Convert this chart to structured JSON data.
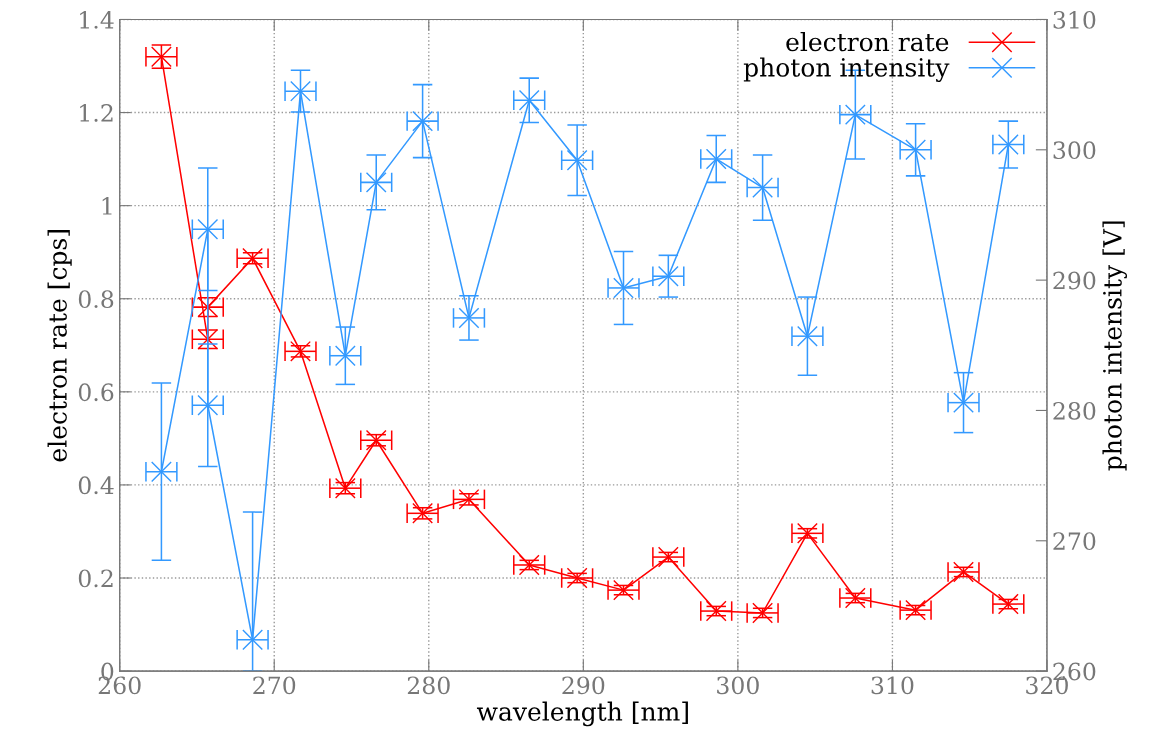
{
  "chart_data": {
    "type": "line",
    "xlabel": "wavelength [nm]",
    "ylabel": "electron rate [cps]",
    "y2label": "photon intensity [V]",
    "xlim": [
      260,
      320
    ],
    "xticks": [
      260,
      270,
      280,
      290,
      300,
      310,
      320
    ],
    "ylim": [
      0,
      1.4
    ],
    "yticks": [
      0,
      0.2,
      0.4,
      0.6,
      0.8,
      1,
      1.2,
      1.4
    ],
    "y2lim": [
      260,
      310
    ],
    "y2ticks": [
      260,
      270,
      280,
      290,
      300,
      310
    ],
    "grid": true,
    "legend": "top right",
    "marker": "cross",
    "line_style": "solid",
    "series": [
      {
        "name": "electron rate",
        "color": "#ff0000",
        "axis": "y",
        "x": [
          262.7,
          265.7,
          265.7,
          268.6,
          271.7,
          274.6,
          276.6,
          279.6,
          282.6,
          286.5,
          289.6,
          292.6,
          295.5,
          298.6,
          301.6,
          304.5,
          307.6,
          311.5,
          314.6,
          317.5
        ],
        "values": [
          1.32,
          0.713,
          0.782,
          0.887,
          0.687,
          0.393,
          0.496,
          0.339,
          0.369,
          0.228,
          0.2,
          0.174,
          0.245,
          0.129,
          0.125,
          0.296,
          0.157,
          0.131,
          0.213,
          0.144
        ],
        "errors": [
          0.025,
          0.02,
          0.02,
          0.012,
          0.012,
          0.012,
          0.012,
          0.012,
          0.012,
          0.01,
          0.01,
          0.01,
          0.01,
          0.01,
          0.01,
          0.01,
          0.01,
          0.01,
          0.01,
          0.01
        ],
        "xerrors": [
          1,
          1,
          1,
          1,
          1,
          1,
          1,
          1,
          1,
          1,
          1,
          1,
          1,
          1,
          1,
          1,
          1,
          1,
          1,
          1
        ]
      },
      {
        "name": "photon intensity",
        "color": "#3399ff",
        "axis": "y2",
        "x": [
          262.7,
          265.7,
          265.7,
          268.6,
          271.7,
          274.6,
          276.6,
          279.6,
          282.6,
          286.5,
          289.6,
          292.6,
          295.5,
          298.6,
          301.6,
          304.5,
          307.6,
          311.5,
          314.6,
          317.5
        ],
        "values": [
          275.3,
          293.9,
          280.4,
          262.4,
          304.5,
          284.2,
          297.5,
          302.2,
          287.1,
          303.8,
          299.2,
          289.4,
          290.3,
          299.3,
          297.1,
          285.7,
          302.7,
          300.0,
          280.6,
          300.4
        ],
        "errors": [
          6.8,
          4.7,
          4.7,
          [
            260,
            272.2
          ],
          1.6,
          2.2,
          2.1,
          2.8,
          1.7,
          1.7,
          2.7,
          2.8,
          1.6,
          1.8,
          2.5,
          3.0,
          3.4,
          2.0,
          2.3,
          1.8
        ],
        "xerrors": [
          1,
          1,
          1,
          1,
          1,
          1,
          1,
          1,
          1,
          1,
          1,
          1,
          1,
          1,
          1,
          1,
          1,
          1,
          1,
          1
        ]
      }
    ]
  }
}
